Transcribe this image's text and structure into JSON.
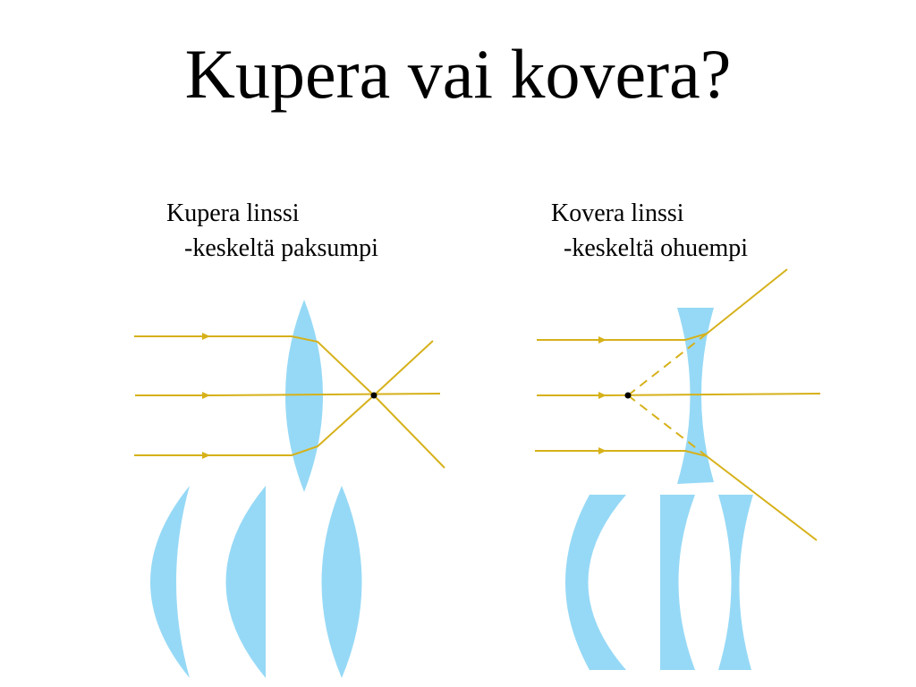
{
  "title": "Kupera vai kovera?",
  "convex": {
    "heading": "Kupera linssi",
    "description": "-keskeltä paksumpi"
  },
  "concave": {
    "heading": "Kovera linssi",
    "description": "-keskeltä ohuempi"
  },
  "colors": {
    "lens": "#96d9f6",
    "ray": "#d6b11a",
    "focus": "#000000",
    "text": "#000000"
  }
}
